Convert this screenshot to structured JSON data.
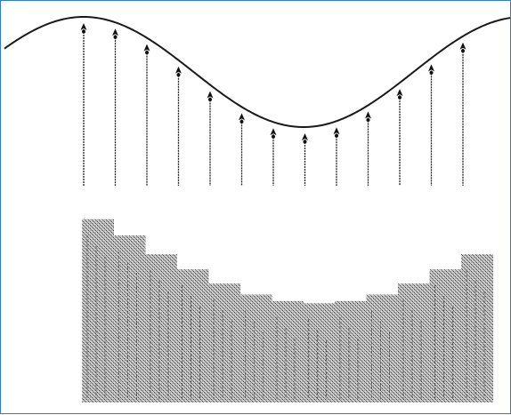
{
  "diagram": {
    "kind": "sampled-signal-illustration",
    "colors": {
      "frame_border": "#3a78c8",
      "curve": "#1a1a1a",
      "sample_line": "#202020",
      "sample_marker": "#101010",
      "fill_light": "#c8c8c8",
      "fill_dark": "#4a4a4a"
    },
    "curve": {
      "shape": "sinusoid",
      "periods_visible": 1.3
    },
    "sample_count": 13,
    "samples": [
      0.93,
      0.78,
      0.61,
      0.47,
      0.34,
      0.24,
      0.18,
      0.16,
      0.18,
      0.24,
      0.34,
      0.47,
      0.61
    ],
    "reconstruction": {
      "style": "stepped-bars",
      "pattern": "dithered"
    }
  }
}
